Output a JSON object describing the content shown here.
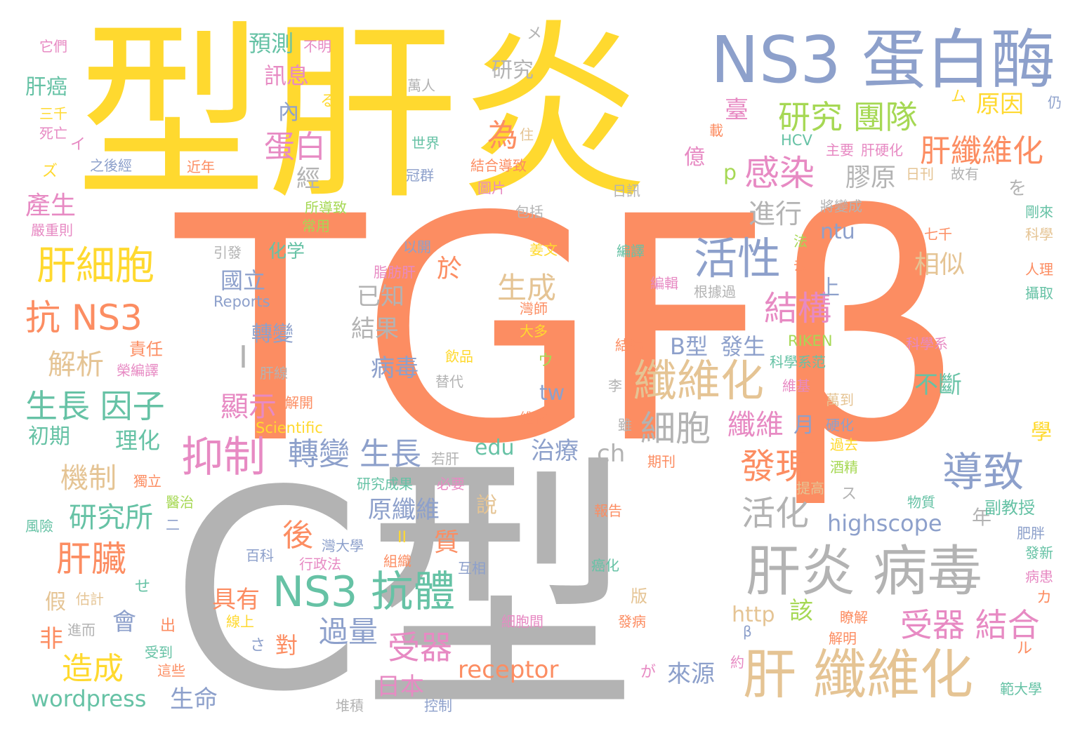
{
  "palette": {
    "orange": "#fc8d62",
    "yellow": "#ffd92f",
    "gray": "#b3b3b3",
    "blue": "#8da0cb",
    "green": "#66c2a5",
    "pink": "#e78ac3",
    "tan": "#e5c494",
    "lime": "#a6d854"
  },
  "words": [
    {
      "text": "TGFβ",
      "color": "orange"
    },
    {
      "text": "C型",
      "color": "gray"
    },
    {
      "text": "型肝炎",
      "color": "yellow"
    },
    {
      "text": "NS3 蛋白酶",
      "color": "blue"
    },
    {
      "text": "肝炎 病毒",
      "color": "gray"
    },
    {
      "text": "肝 纖維化",
      "color": "tan"
    },
    {
      "text": "纖維化",
      "color": "tan"
    },
    {
      "text": "NS3 抗體",
      "color": "green"
    },
    {
      "text": "活性",
      "color": "blue"
    },
    {
      "text": "抑制",
      "color": "pink"
    },
    {
      "text": "導致",
      "color": "blue"
    },
    {
      "text": "肝細胞",
      "color": "yellow"
    },
    {
      "text": "抗 NS3",
      "color": "orange"
    },
    {
      "text": "肝臟",
      "color": "orange"
    },
    {
      "text": "研究 團隊",
      "color": "lime"
    },
    {
      "text": "感染",
      "color": "pink"
    },
    {
      "text": "結構",
      "color": "pink"
    },
    {
      "text": "細胞",
      "color": "gray"
    },
    {
      "text": "發現",
      "color": "orange"
    },
    {
      "text": "受器 結合",
      "color": "pink"
    },
    {
      "text": "生長 因子",
      "color": "green"
    },
    {
      "text": "轉變 生長",
      "color": "blue"
    },
    {
      "text": "肝纖維化",
      "color": "orange"
    },
    {
      "text": "活化",
      "color": "gray"
    },
    {
      "text": "受器",
      "color": "pink"
    },
    {
      "text": "造成",
      "color": "yellow"
    },
    {
      "text": "蛋白",
      "color": "pink"
    },
    {
      "text": "生成",
      "color": "tan"
    },
    {
      "text": "研究所",
      "color": "green"
    },
    {
      "text": "過量",
      "color": "blue"
    },
    {
      "text": "機制",
      "color": "tan"
    },
    {
      "text": "解析",
      "color": "tan"
    },
    {
      "text": "顯示",
      "color": "pink"
    },
    {
      "text": "纖維",
      "color": "pink"
    },
    {
      "text": "receptor",
      "color": "orange"
    },
    {
      "text": "wordpress",
      "color": "green"
    },
    {
      "text": "highscope",
      "color": "blue"
    },
    {
      "text": "產生",
      "color": "pink"
    },
    {
      "text": "進行",
      "color": "gray"
    },
    {
      "text": "膠原",
      "color": "gray"
    },
    {
      "text": "相似",
      "color": "tan"
    },
    {
      "text": "原因",
      "color": "yellow"
    },
    {
      "text": "已知",
      "color": "gray"
    },
    {
      "text": "結果",
      "color": "gray"
    },
    {
      "text": "病毒",
      "color": "blue"
    },
    {
      "text": "治療",
      "color": "blue"
    },
    {
      "text": "原纖維",
      "color": "blue"
    },
    {
      "text": "B型",
      "color": "blue"
    },
    {
      "text": "發生",
      "color": "blue"
    },
    {
      "text": "不斷",
      "color": "green"
    },
    {
      "text": "具有",
      "color": "orange"
    },
    {
      "text": "日本",
      "color": "pink"
    },
    {
      "text": "來源",
      "color": "blue"
    },
    {
      "text": "生命",
      "color": "blue"
    },
    {
      "text": "國立",
      "color": "blue"
    },
    {
      "text": "edu",
      "color": "green"
    },
    {
      "text": "ch",
      "color": "gray"
    },
    {
      "text": "tw",
      "color": "blue"
    },
    {
      "text": "ntu",
      "color": "blue"
    },
    {
      "text": "http",
      "color": "tan"
    },
    {
      "text": "預測",
      "color": "green"
    },
    {
      "text": "訊息",
      "color": "pink"
    },
    {
      "text": "研究",
      "color": "gray"
    },
    {
      "text": "肝癌",
      "color": "green"
    },
    {
      "text": "初期",
      "color": "green"
    },
    {
      "text": "理化",
      "color": "green"
    },
    {
      "text": "責任",
      "color": "orange"
    },
    {
      "text": "轉變",
      "color": "blue"
    },
    {
      "text": "化学",
      "color": "green"
    },
    {
      "text": "經",
      "color": "gray"
    },
    {
      "text": "內",
      "color": "blue"
    },
    {
      "text": "為",
      "color": "orange"
    },
    {
      "text": "於",
      "color": "orange"
    },
    {
      "text": "質",
      "color": "orange"
    },
    {
      "text": "後",
      "color": "orange"
    },
    {
      "text": "會",
      "color": "blue"
    },
    {
      "text": "該",
      "color": "lime"
    },
    {
      "text": "說",
      "color": "tan"
    },
    {
      "text": "年",
      "color": "gray"
    },
    {
      "text": "上",
      "color": "blue"
    },
    {
      "text": "月",
      "color": "blue"
    },
    {
      "text": "p",
      "color": "lime"
    },
    {
      "text": "億",
      "color": "pink"
    },
    {
      "text": "臺",
      "color": "pink"
    },
    {
      "text": "非",
      "color": "orange"
    },
    {
      "text": "假",
      "color": "tan"
    },
    {
      "text": "對",
      "color": "orange"
    },
    {
      "text": "を",
      "color": "gray"
    },
    {
      "text": "學",
      "color": "yellow"
    },
    {
      "text": "Scientific",
      "color": "yellow"
    },
    {
      "text": "Reports",
      "color": "blue"
    },
    {
      "text": "RIKEN",
      "color": "lime"
    },
    {
      "text": "HCV",
      "color": "green"
    },
    {
      "text": "不明",
      "color": "pink"
    },
    {
      "text": "它們",
      "color": "pink"
    },
    {
      "text": "萬人",
      "color": "gray"
    },
    {
      "text": "三千",
      "color": "yellow"
    },
    {
      "text": "死亡",
      "color": "pink"
    },
    {
      "text": "之後經",
      "color": "blue"
    },
    {
      "text": "近年",
      "color": "orange"
    },
    {
      "text": "世界",
      "color": "green"
    },
    {
      "text": "冠群",
      "color": "blue"
    },
    {
      "text": "結合導致",
      "color": "orange"
    },
    {
      "text": "圖片",
      "color": "pink"
    },
    {
      "text": "主要",
      "color": "pink"
    },
    {
      "text": "肝硬化",
      "color": "pink"
    },
    {
      "text": "日刊",
      "color": "tan"
    },
    {
      "text": "故有",
      "color": "gray"
    },
    {
      "text": "日訊",
      "color": "gray"
    },
    {
      "text": "將變成",
      "color": "gray"
    },
    {
      "text": "所導致",
      "color": "lime"
    },
    {
      "text": "常用",
      "color": "lime"
    },
    {
      "text": "包括",
      "color": "gray"
    },
    {
      "text": "嚴重則",
      "color": "pink"
    },
    {
      "text": "引發",
      "color": "gray"
    },
    {
      "text": "以開",
      "color": "blue"
    },
    {
      "text": "姜文",
      "color": "yellow"
    },
    {
      "text": "編譯",
      "color": "green"
    },
    {
      "text": "脂肪肝",
      "color": "pink"
    },
    {
      "text": "法",
      "color": "lime"
    },
    {
      "text": "去",
      "color": "orange"
    },
    {
      "text": "七千",
      "color": "orange"
    },
    {
      "text": "剛來",
      "color": "green"
    },
    {
      "text": "科學",
      "color": "tan"
    },
    {
      "text": "人理",
      "color": "orange"
    },
    {
      "text": "攝取",
      "color": "green"
    },
    {
      "text": "編輯",
      "color": "pink"
    },
    {
      "text": "根據過",
      "color": "gray"
    },
    {
      "text": "灣師",
      "color": "orange"
    },
    {
      "text": "大多",
      "color": "yellow"
    },
    {
      "text": "結締",
      "color": "orange"
    },
    {
      "text": "科學系",
      "color": "pink"
    },
    {
      "text": "科學系范",
      "color": "green"
    },
    {
      "text": "榮編譯",
      "color": "pink"
    },
    {
      "text": "飲品",
      "color": "yellow"
    },
    {
      "text": "替代",
      "color": "gray"
    },
    {
      "text": "肝線",
      "color": "gray"
    },
    {
      "text": "李",
      "color": "gray"
    },
    {
      "text": "維基",
      "color": "pink"
    },
    {
      "text": "萬到",
      "color": "tan"
    },
    {
      "text": "解開",
      "color": "orange"
    },
    {
      "text": "維化",
      "color": "orange"
    },
    {
      "text": "雖",
      "color": "gray"
    },
    {
      "text": "硬化",
      "color": "blue"
    },
    {
      "text": "若肝",
      "color": "gray"
    },
    {
      "text": "過去",
      "color": "yellow"
    },
    {
      "text": "酒精",
      "color": "lime"
    },
    {
      "text": "期刊",
      "color": "orange"
    },
    {
      "text": "獨立",
      "color": "orange"
    },
    {
      "text": "研究成果",
      "color": "green"
    },
    {
      "text": "必要",
      "color": "pink"
    },
    {
      "text": "提高",
      "color": "tan"
    },
    {
      "text": "醫治",
      "color": "lime"
    },
    {
      "text": "物質",
      "color": "green"
    },
    {
      "text": "副教授",
      "color": "green"
    },
    {
      "text": "報告",
      "color": "orange"
    },
    {
      "text": "風險",
      "color": "green"
    },
    {
      "text": "灣大學",
      "color": "blue"
    },
    {
      "text": "百科",
      "color": "blue"
    },
    {
      "text": "行政法",
      "color": "pink"
    },
    {
      "text": "組織",
      "color": "orange"
    },
    {
      "text": "互相",
      "color": "blue"
    },
    {
      "text": "癌化",
      "color": "green"
    },
    {
      "text": "肥胖",
      "color": "blue"
    },
    {
      "text": "發新",
      "color": "green"
    },
    {
      "text": "病患",
      "color": "pink"
    },
    {
      "text": "估計",
      "color": "tan"
    },
    {
      "text": "版",
      "color": "tan"
    },
    {
      "text": "進而",
      "color": "gray"
    },
    {
      "text": "出",
      "color": "orange"
    },
    {
      "text": "線上",
      "color": "yellow"
    },
    {
      "text": "細胞間",
      "color": "pink"
    },
    {
      "text": "發病",
      "color": "orange"
    },
    {
      "text": "瞭解",
      "color": "orange"
    },
    {
      "text": "解明",
      "color": "orange"
    },
    {
      "text": "受到",
      "color": "green"
    },
    {
      "text": "這些",
      "color": "orange"
    },
    {
      "text": "堆積",
      "color": "gray"
    },
    {
      "text": "控制",
      "color": "blue"
    },
    {
      "text": "範大學",
      "color": "green"
    },
    {
      "text": "β",
      "color": "blue"
    },
    {
      "text": "メ",
      "color": "gray"
    },
    {
      "text": "る",
      "color": "yellow"
    },
    {
      "text": "ム",
      "color": "yellow"
    },
    {
      "text": "仍",
      "color": "blue"
    },
    {
      "text": "イ",
      "color": "pink"
    },
    {
      "text": "ズ",
      "color": "yellow"
    },
    {
      "text": "住",
      "color": "tan"
    },
    {
      "text": "載",
      "color": "orange"
    },
    {
      "text": "ウ",
      "color": "lime"
    },
    {
      "text": "ス",
      "color": "gray"
    },
    {
      "text": "II",
      "color": "yellow"
    },
    {
      "text": "I",
      "color": "gray"
    },
    {
      "text": "カ",
      "color": "orange"
    },
    {
      "text": "ル",
      "color": "orange"
    },
    {
      "text": "せ",
      "color": "green"
    },
    {
      "text": "さ",
      "color": "blue"
    },
    {
      "text": "が",
      "color": "pink"
    },
    {
      "text": "約",
      "color": "pink"
    },
    {
      "text": "二",
      "color": "blue"
    }
  ]
}
